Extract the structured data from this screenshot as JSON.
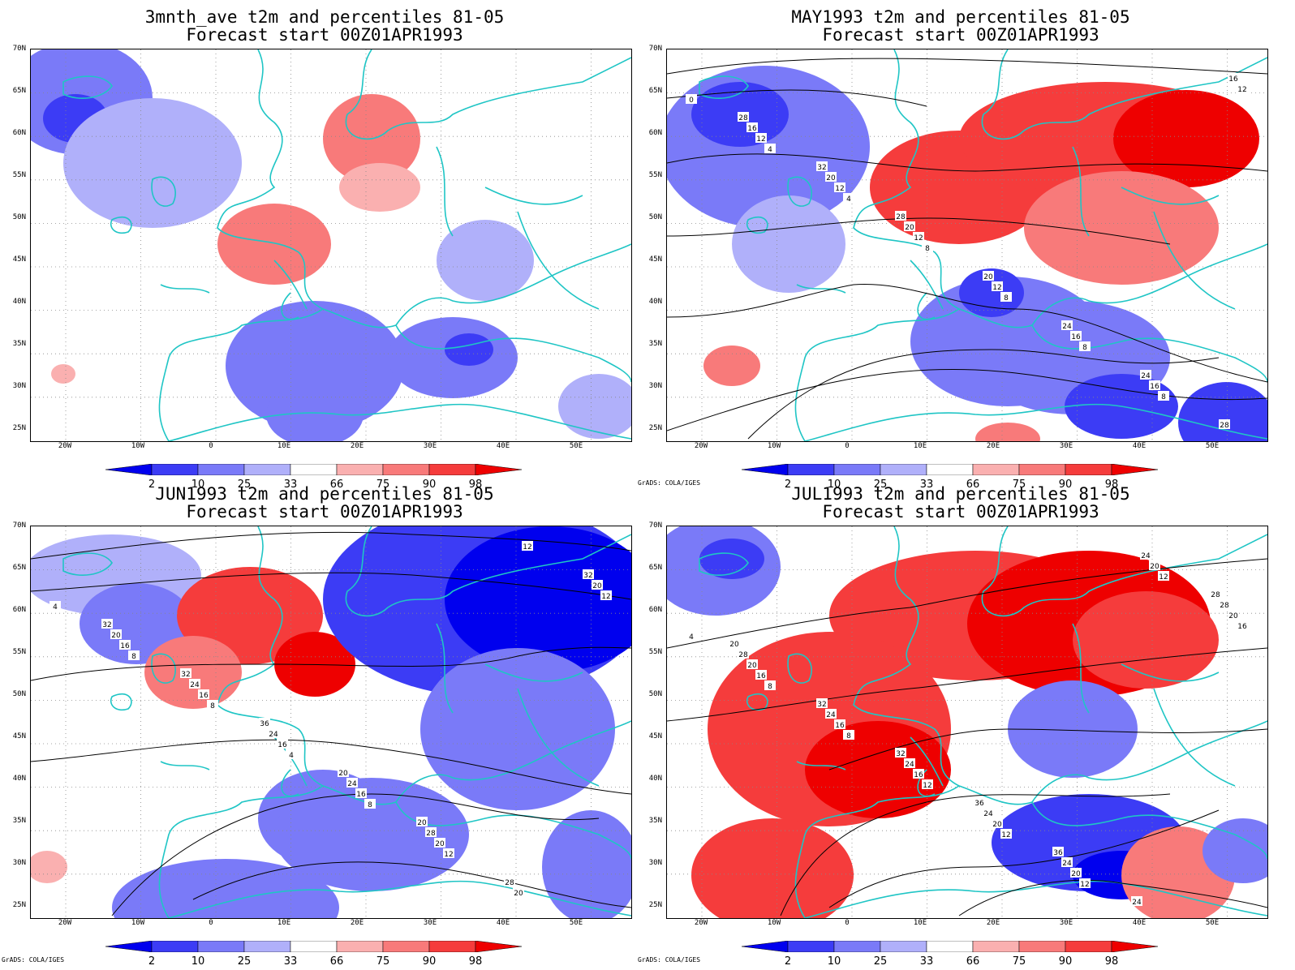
{
  "panels": [
    {
      "title_line1": "3mnth_ave t2m and percentiles 81-05",
      "title_line2": "Forecast start 00Z01APR1993",
      "credit": "",
      "contours": false,
      "tone": "mixed-weak"
    },
    {
      "title_line1": "MAY1993 t2m and percentiles 81-05",
      "title_line2": "Forecast start 00Z01APR1993",
      "credit": "GrADS: COLA/IGES",
      "contours": true,
      "tone": "mixed-may"
    },
    {
      "title_line1": "JUN1993 t2m and percentiles 81-05",
      "title_line2": "Forecast start 00Z01APR1993",
      "credit": "GrADS: COLA/IGES",
      "contours": true,
      "tone": "mixed-jun"
    },
    {
      "title_line1": "JUL1993 t2m and percentiles 81-05",
      "title_line2": "Forecast start 00Z01APR1993",
      "credit": "GrADS: COLA/IGES",
      "contours": true,
      "tone": "mixed-jul"
    }
  ],
  "lat_labels": [
    "70N",
    "65N",
    "60N",
    "55N",
    "50N",
    "45N",
    "40N",
    "35N",
    "30N",
    "25N"
  ],
  "lon_labels": [
    "20W",
    "10W",
    "0",
    "10E",
    "20E",
    "30E",
    "40E",
    "50E"
  ],
  "colorbar": {
    "labels": [
      "2",
      "10",
      "25",
      "33",
      "66",
      "75",
      "90",
      "98"
    ],
    "colors": [
      "#0000ee",
      "#3c3cf5",
      "#7a7af8",
      "#b0b0fa",
      "#ffffff",
      "#fab0b0",
      "#f87a7a",
      "#f53c3c",
      "#ee0000"
    ]
  },
  "contour_labels": {
    "may": [
      "0",
      "4",
      "4",
      "8",
      "8",
      "8",
      "8",
      "12",
      "12",
      "12",
      "12",
      "12",
      "16",
      "16",
      "16",
      "16",
      "20",
      "20",
      "20",
      "24",
      "24",
      "28",
      "28",
      "32",
      "28"
    ],
    "jun": [
      "4",
      "8",
      "8",
      "4",
      "8",
      "12",
      "12",
      "12",
      "16",
      "16",
      "16",
      "16",
      "20",
      "20",
      "20",
      "20",
      "24",
      "24",
      "24",
      "28",
      "28",
      "32",
      "32",
      "32",
      "36",
      "20",
      "20"
    ],
    "jul": [
      "4",
      "8",
      "8",
      "12",
      "12",
      "12",
      "12",
      "16",
      "16",
      "16",
      "16",
      "20",
      "20",
      "20",
      "20",
      "20",
      "24",
      "24",
      "24",
      "24",
      "24",
      "28",
      "28",
      "32",
      "32",
      "36",
      "36",
      "24",
      "28",
      "20"
    ]
  },
  "colors": {
    "coast": "#1fc5c5",
    "grid": "#888888",
    "contour": "#000000"
  }
}
